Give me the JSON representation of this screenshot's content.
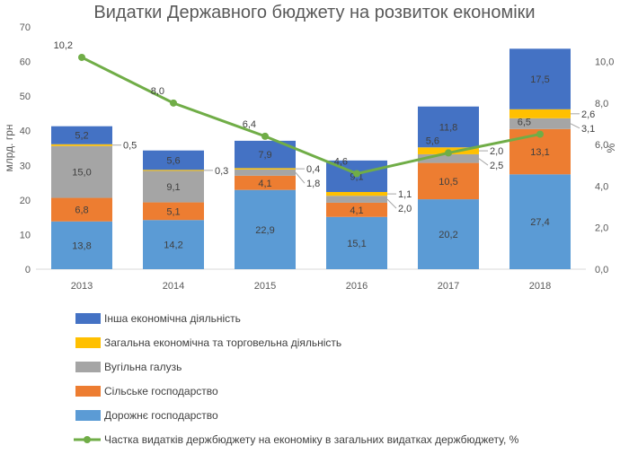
{
  "chart_data": {
    "type": "bar",
    "title": "Видатки Державного бюджету на розвиток економіки",
    "ylabel": "млрд. грн",
    "y2label": "%",
    "ylim": [
      0,
      70
    ],
    "y2lim": [
      0,
      11.6667
    ],
    "yticks": [
      "0",
      "10",
      "20",
      "30",
      "40",
      "50",
      "60",
      "70"
    ],
    "y2ticks": [
      "0,0",
      "2,0",
      "4,0",
      "6,0",
      "8,0",
      "10,0"
    ],
    "grid": false,
    "legend_position": "bottom",
    "categories": [
      "2013",
      "2014",
      "2015",
      "2016",
      "2017",
      "2018"
    ],
    "series": [
      {
        "name": "Дорожнє господарство",
        "color": "#5B9BD5",
        "values": [
          13.8,
          14.2,
          22.9,
          15.1,
          20.2,
          27.4
        ],
        "labels": [
          "13,8",
          "14,2",
          "22,9",
          "15,1",
          "20,2",
          "27,4"
        ]
      },
      {
        "name": "Сільське господарство",
        "color": "#ED7D31",
        "values": [
          6.8,
          5.1,
          4.1,
          4.1,
          10.5,
          13.1
        ],
        "labels": [
          "6,8",
          "5,1",
          "4,1",
          "4,1",
          "10,5",
          "13,1"
        ]
      },
      {
        "name": "Вугільна галузь",
        "color": "#A5A5A5",
        "values": [
          15.0,
          9.1,
          1.8,
          2.0,
          2.5,
          3.1
        ],
        "labels": [
          "15,0",
          "9,1",
          "1,8",
          "2,0",
          "2,5",
          "3,1"
        ]
      },
      {
        "name": "Загальна економічна та торговельна діяльність",
        "color": "#FFC000",
        "values": [
          0.5,
          0.3,
          0.4,
          1.1,
          2.0,
          2.6
        ],
        "labels": [
          "0,5",
          "0,3",
          "0,4",
          "1,1",
          "2,0",
          "2,6"
        ]
      },
      {
        "name": "Інша економічна діяльність",
        "color": "#4472C4",
        "values": [
          5.2,
          5.6,
          7.9,
          9.1,
          11.8,
          17.5
        ],
        "labels": [
          "5,2",
          "5,6",
          "7,9",
          "9,1",
          "11,8",
          "17,5"
        ]
      }
    ],
    "line": {
      "name": "Частка видатків держбюджету на економіку в загальних видатках держбюджету, %",
      "color": "#70AD47",
      "axis": "right",
      "values": [
        10.2,
        8.0,
        6.4,
        4.6,
        5.6,
        6.5
      ],
      "labels": [
        "10,2",
        "8,0",
        "6,4",
        "4,6",
        "5,6",
        "6,5"
      ]
    }
  }
}
